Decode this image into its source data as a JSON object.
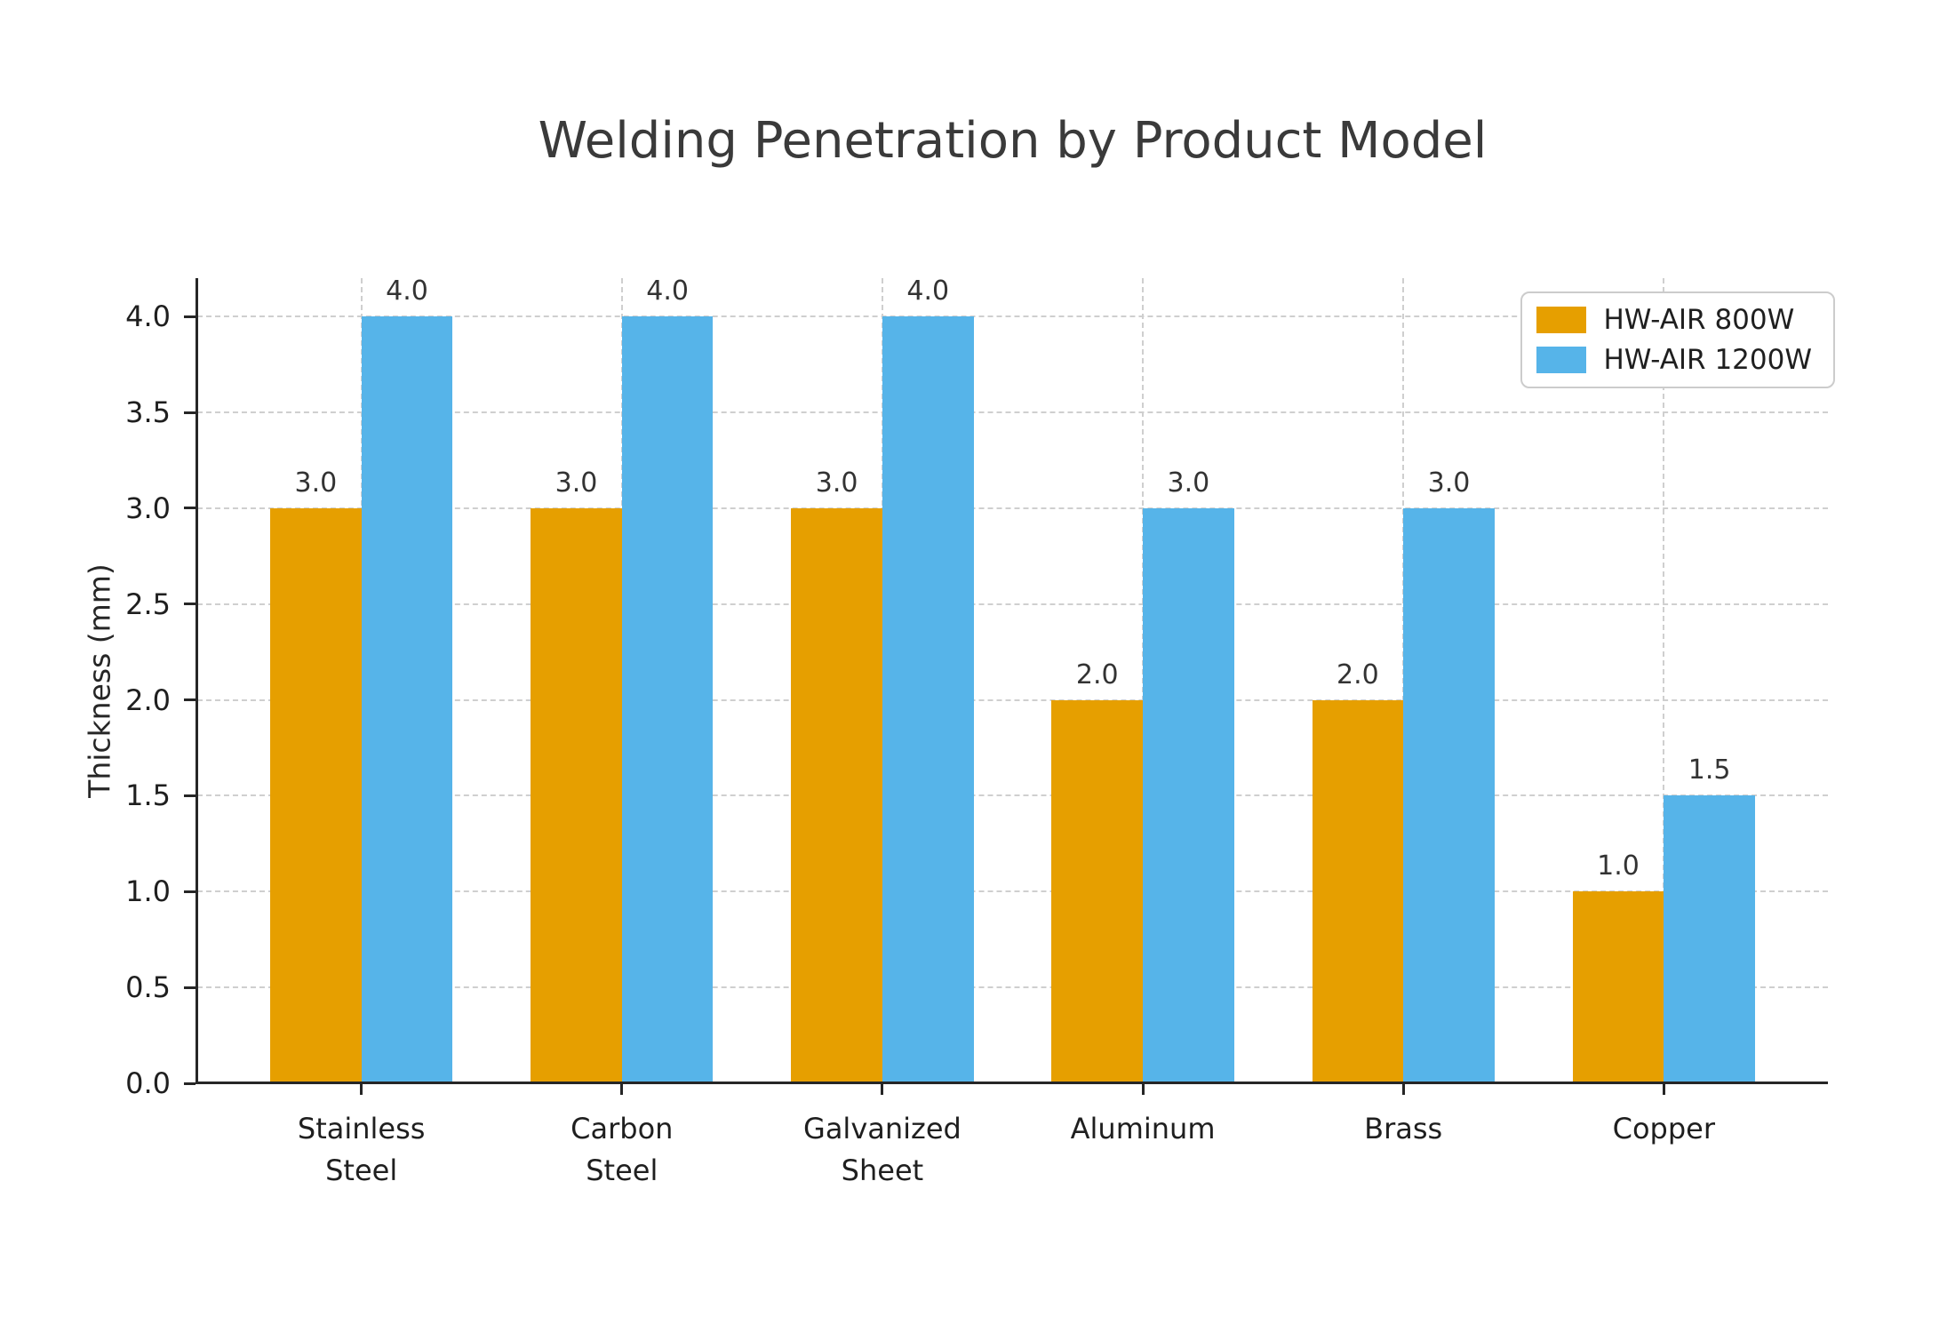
{
  "title": "Welding Penetration by Product Model",
  "chart_data": {
    "type": "bar",
    "title": "Welding Penetration by Product Model",
    "categories": [
      "Stainless Steel",
      "Carbon Steel",
      "Galvanized Sheet",
      "Aluminum",
      "Brass",
      "Copper"
    ],
    "category_tick_lines": [
      [
        "Stainless",
        "Steel"
      ],
      [
        "Carbon",
        "Steel"
      ],
      [
        "Galvanized",
        "Sheet"
      ],
      [
        "Aluminum"
      ],
      [
        "Brass"
      ],
      [
        "Copper"
      ]
    ],
    "series": [
      {
        "name": "HW-AIR 800W",
        "color": "#E69F00",
        "values": [
          3.0,
          3.0,
          3.0,
          2.0,
          2.0,
          1.0
        ]
      },
      {
        "name": "HW-AIR 1200W",
        "color": "#56B4E9",
        "values": [
          4.0,
          4.0,
          4.0,
          3.0,
          3.0,
          1.5
        ]
      }
    ],
    "bar_value_labels": [
      "3.0",
      "4.0",
      "3.0",
      "4.0",
      "3.0",
      "4.0",
      "2.0",
      "3.0",
      "2.0",
      "3.0",
      "1.0",
      "1.5"
    ],
    "xlabel": "",
    "ylabel": "Thickness (mm)",
    "ylim": [
      0,
      4.2
    ],
    "yticks": [
      0.0,
      0.5,
      1.0,
      1.5,
      2.0,
      2.5,
      3.0,
      3.5,
      4.0
    ],
    "grid": {
      "visible": true,
      "axis": "both",
      "style": "dashed",
      "color": "#cccccc"
    },
    "legend": {
      "position": "upper right",
      "entries": [
        "HW-AIR 800W",
        "HW-AIR 1200W"
      ]
    },
    "colors": {
      "background": "#ffffff",
      "axis": "#262626",
      "text": "#1f1f1f",
      "title": "#3a3a3a",
      "grid": "#cfcfcf"
    }
  }
}
